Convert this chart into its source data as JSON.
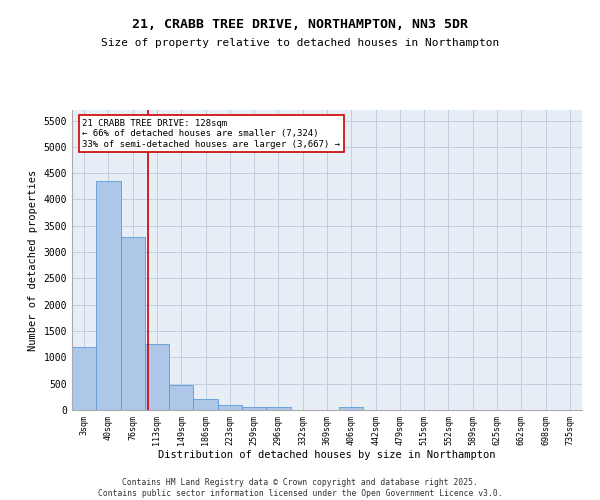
{
  "title": "21, CRABB TREE DRIVE, NORTHAMPTON, NN3 5DR",
  "subtitle": "Size of property relative to detached houses in Northampton",
  "xlabel": "Distribution of detached houses by size in Northampton",
  "ylabel": "Number of detached properties",
  "footer_line1": "Contains HM Land Registry data © Crown copyright and database right 2025.",
  "footer_line2": "Contains public sector information licensed under the Open Government Licence v3.0.",
  "annotation_title": "21 CRABB TREE DRIVE: 128sqm",
  "annotation_line2": "← 66% of detached houses are smaller (7,324)",
  "annotation_line3": "33% of semi-detached houses are larger (3,667) →",
  "bar_color": "#aec6e8",
  "bar_edge_color": "#5b9bd5",
  "vline_color": "#cc0000",
  "annotation_box_color": "#cc0000",
  "bg_color": "#e8eef5",
  "grid_color": "#c0cfe0",
  "categories": [
    "3sqm",
    "40sqm",
    "76sqm",
    "113sqm",
    "149sqm",
    "186sqm",
    "223sqm",
    "259sqm",
    "296sqm",
    "332sqm",
    "369sqm",
    "406sqm",
    "442sqm",
    "479sqm",
    "515sqm",
    "552sqm",
    "589sqm",
    "625sqm",
    "662sqm",
    "698sqm",
    "735sqm"
  ],
  "values": [
    1200,
    4350,
    3280,
    1250,
    480,
    200,
    100,
    60,
    55,
    0,
    0,
    55,
    0,
    0,
    0,
    0,
    0,
    0,
    0,
    0,
    0
  ],
  "ylim": [
    0,
    5700
  ],
  "yticks": [
    0,
    500,
    1000,
    1500,
    2000,
    2500,
    3000,
    3500,
    4000,
    4500,
    5000,
    5500
  ],
  "vline_x_index": 2.62
}
